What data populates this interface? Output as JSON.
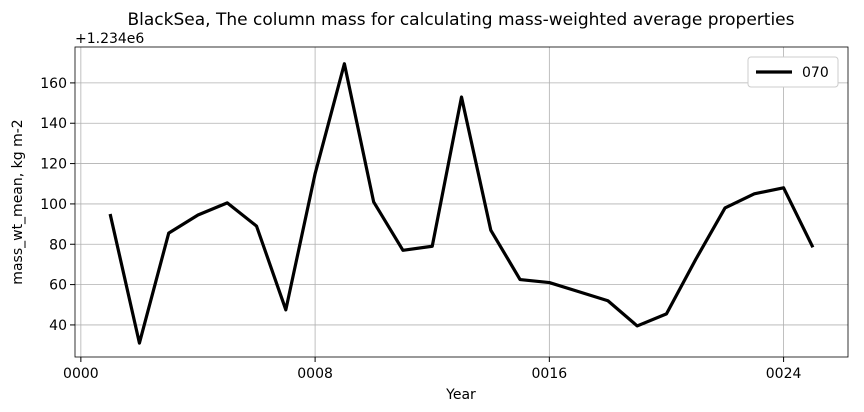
{
  "chart_data": {
    "type": "line",
    "title": "BlackSea, The column mass for calculating mass-weighted average properties",
    "offset_label": "+1.234e6",
    "xlabel": "Year",
    "ylabel": "mass_wt_mean, kg m-2",
    "x": [
      1,
      2,
      3,
      4,
      5,
      6,
      7,
      8,
      9,
      10,
      11,
      12,
      13,
      14,
      15,
      16,
      17,
      18,
      19,
      20,
      21,
      22,
      23,
      24,
      25
    ],
    "series": [
      {
        "name": "070",
        "color": "#000000",
        "values": [
          95,
          31,
          85.5,
          94.5,
          100.5,
          89,
          47.5,
          115,
          169.5,
          101,
          77,
          79,
          153,
          87,
          62.5,
          61,
          56.5,
          52,
          39.5,
          45.5,
          72.5,
          98,
          105,
          108,
          78.5
        ]
      }
    ],
    "xlim": [
      -0.2,
      26.2
    ],
    "xticks": [
      {
        "value": 0,
        "label": "0000"
      },
      {
        "value": 8,
        "label": "0008"
      },
      {
        "value": 16,
        "label": "0016"
      },
      {
        "value": 24,
        "label": "0024"
      }
    ],
    "ylim": [
      24.1,
      177.8
    ],
    "yticks": [
      40,
      60,
      80,
      100,
      120,
      140,
      160
    ],
    "grid": true,
    "legend": "upper right"
  }
}
